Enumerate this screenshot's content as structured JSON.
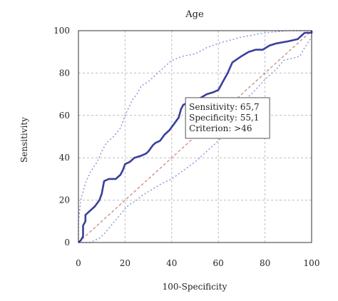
{
  "chart_data": {
    "type": "line",
    "title": "Age",
    "xlabel": "100-Specificity",
    "ylabel": "Sensitivity",
    "xlim": [
      0,
      100
    ],
    "ylim": [
      0,
      100
    ],
    "xticks": [
      0,
      20,
      40,
      60,
      80,
      100
    ],
    "yticks": [
      0,
      20,
      40,
      60,
      80,
      100
    ],
    "grid": true,
    "series": [
      {
        "role": "roc",
        "color": "#3a3f9e",
        "style": "solid",
        "points": [
          [
            0,
            0
          ],
          [
            1,
            1
          ],
          [
            2,
            3
          ],
          [
            2,
            8
          ],
          [
            3,
            10
          ],
          [
            3,
            13
          ],
          [
            5,
            15
          ],
          [
            7,
            17
          ],
          [
            9,
            20
          ],
          [
            10,
            23
          ],
          [
            11,
            29
          ],
          [
            13,
            30
          ],
          [
            16,
            30
          ],
          [
            18,
            32
          ],
          [
            19,
            34
          ],
          [
            20,
            37
          ],
          [
            22,
            38
          ],
          [
            24,
            40
          ],
          [
            27,
            41
          ],
          [
            29,
            42
          ],
          [
            30,
            43
          ],
          [
            32,
            46
          ],
          [
            33,
            47
          ],
          [
            35,
            48
          ],
          [
            37,
            51
          ],
          [
            39,
            53
          ],
          [
            41,
            56
          ],
          [
            43,
            59
          ],
          [
            44,
            63
          ],
          [
            45,
            65
          ],
          [
            47,
            66
          ],
          [
            50,
            67
          ],
          [
            52,
            68
          ],
          [
            55,
            70
          ],
          [
            58,
            71
          ],
          [
            60,
            72
          ],
          [
            62,
            76
          ],
          [
            64,
            80
          ],
          [
            66,
            85
          ],
          [
            70,
            88
          ],
          [
            73,
            90
          ],
          [
            76,
            91
          ],
          [
            79,
            91
          ],
          [
            82,
            93
          ],
          [
            85,
            94
          ],
          [
            90,
            95
          ],
          [
            94,
            96
          ],
          [
            97,
            99
          ],
          [
            100,
            99
          ],
          [
            100,
            100
          ]
        ]
      },
      {
        "role": "ci-upper",
        "color": "#8c8fdb",
        "style": "dotted",
        "points": [
          [
            0,
            0
          ],
          [
            0,
            4
          ],
          [
            0,
            10
          ],
          [
            1,
            20
          ],
          [
            3,
            28
          ],
          [
            5,
            33
          ],
          [
            8,
            38
          ],
          [
            10,
            43
          ],
          [
            12,
            47
          ],
          [
            15,
            50
          ],
          [
            18,
            54
          ],
          [
            20,
            60
          ],
          [
            23,
            67
          ],
          [
            25,
            70
          ],
          [
            27,
            74
          ],
          [
            30,
            76
          ],
          [
            33,
            79
          ],
          [
            36,
            82
          ],
          [
            38,
            84
          ],
          [
            40,
            86
          ],
          [
            45,
            88
          ],
          [
            50,
            89
          ],
          [
            55,
            92
          ],
          [
            60,
            94
          ],
          [
            70,
            97
          ],
          [
            80,
            99
          ],
          [
            90,
            100
          ],
          [
            100,
            100
          ]
        ]
      },
      {
        "role": "ci-lower",
        "color": "#8c8fdb",
        "style": "dotted",
        "points": [
          [
            0,
            0
          ],
          [
            5,
            0
          ],
          [
            9,
            2
          ],
          [
            11,
            4
          ],
          [
            14,
            8
          ],
          [
            17,
            12
          ],
          [
            20,
            16
          ],
          [
            22,
            18
          ],
          [
            25,
            20
          ],
          [
            27,
            22
          ],
          [
            30,
            24
          ],
          [
            33,
            26
          ],
          [
            36,
            28
          ],
          [
            40,
            30
          ],
          [
            45,
            34
          ],
          [
            50,
            38
          ],
          [
            55,
            43
          ],
          [
            60,
            48
          ],
          [
            63,
            52
          ],
          [
            66,
            60
          ],
          [
            70,
            66
          ],
          [
            75,
            71
          ],
          [
            80,
            77
          ],
          [
            85,
            82
          ],
          [
            88,
            86
          ],
          [
            92,
            87
          ],
          [
            95,
            88
          ],
          [
            97,
            92
          ],
          [
            100,
            97
          ],
          [
            100,
            100
          ]
        ]
      },
      {
        "role": "reference",
        "color": "#c98a7a",
        "style": "dashed",
        "points": [
          [
            0,
            0
          ],
          [
            100,
            100
          ]
        ]
      }
    ],
    "annotation": {
      "lines": [
        "Sensitivity: 65,7",
        "Specificity: 55,1",
        "Criterion: >46"
      ],
      "at": [
        45,
        65
      ]
    }
  }
}
